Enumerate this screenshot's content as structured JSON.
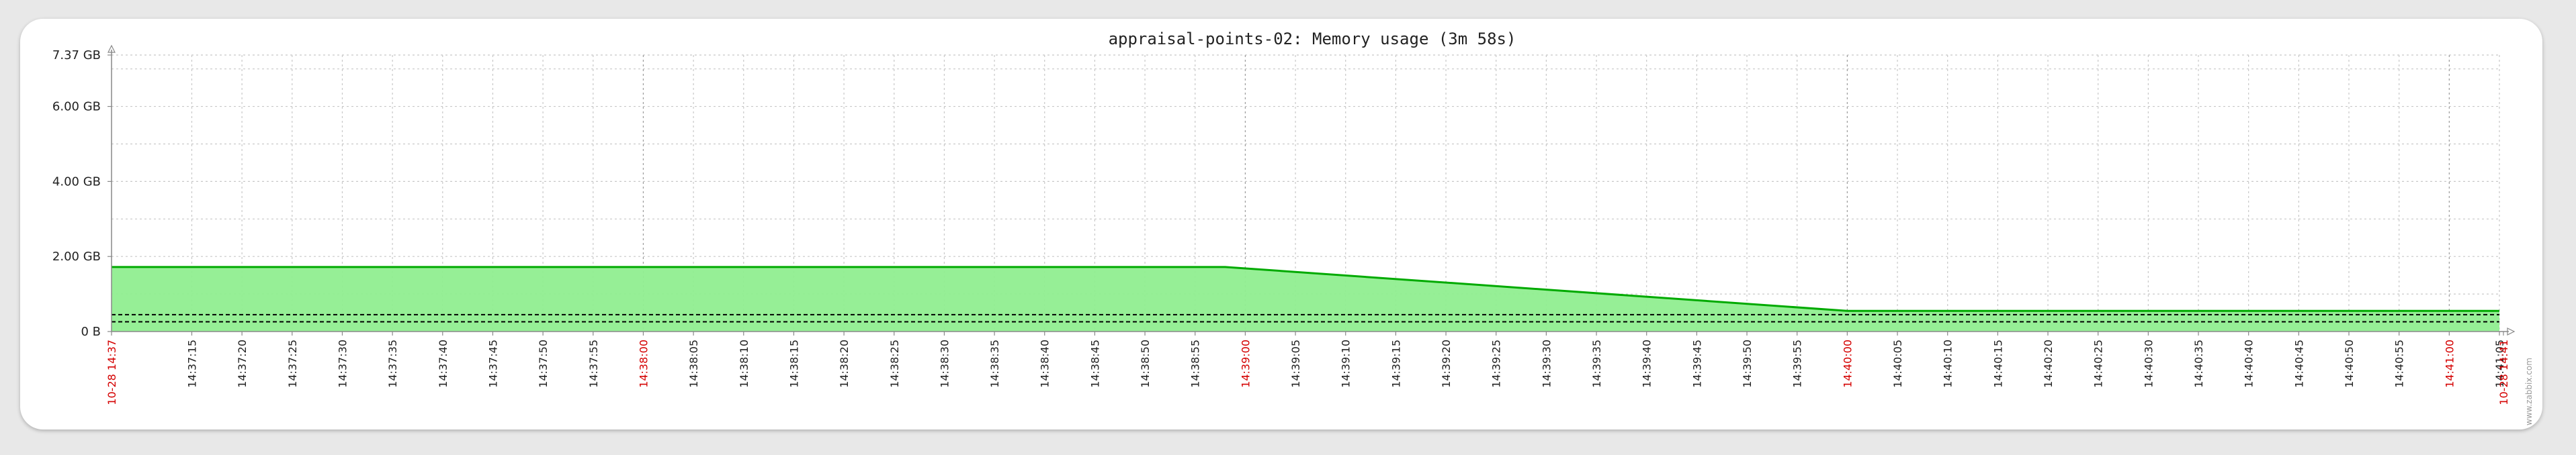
{
  "window": {
    "title": "appraisal-points-02: Memory usage (3m 58s)"
  },
  "watermark": "www.zabbix.com",
  "chart_data": {
    "type": "area",
    "title": "appraisal-points-02: Memory usage (3m 58s)",
    "y_ticks": [
      "0 B",
      "2.00 GB",
      "4.00 GB",
      "6.00 GB",
      "7.37 GB"
    ],
    "ylim": [
      0,
      7.37
    ],
    "y_unit": "GB",
    "x_start": "14:37:07",
    "x_end": "14:41:05",
    "x_ticks": [
      {
        "label": "10-28 14:37",
        "t": "14:37:07",
        "major": true
      },
      {
        "label": "14:37:15",
        "t": "14:37:15",
        "major": false
      },
      {
        "label": "14:37:20",
        "t": "14:37:20",
        "major": false
      },
      {
        "label": "14:37:25",
        "t": "14:37:25",
        "major": false
      },
      {
        "label": "14:37:30",
        "t": "14:37:30",
        "major": false
      },
      {
        "label": "14:37:35",
        "t": "14:37:35",
        "major": false
      },
      {
        "label": "14:37:40",
        "t": "14:37:40",
        "major": false
      },
      {
        "label": "14:37:45",
        "t": "14:37:45",
        "major": false
      },
      {
        "label": "14:37:50",
        "t": "14:37:50",
        "major": false
      },
      {
        "label": "14:37:55",
        "t": "14:37:55",
        "major": false
      },
      {
        "label": "14:38:00",
        "t": "14:38:00",
        "major": true
      },
      {
        "label": "14:38:05",
        "t": "14:38:05",
        "major": false
      },
      {
        "label": "14:38:10",
        "t": "14:38:10",
        "major": false
      },
      {
        "label": "14:38:15",
        "t": "14:38:15",
        "major": false
      },
      {
        "label": "14:38:20",
        "t": "14:38:20",
        "major": false
      },
      {
        "label": "14:38:25",
        "t": "14:38:25",
        "major": false
      },
      {
        "label": "14:38:30",
        "t": "14:38:30",
        "major": false
      },
      {
        "label": "14:38:35",
        "t": "14:38:35",
        "major": false
      },
      {
        "label": "14:38:40",
        "t": "14:38:40",
        "major": false
      },
      {
        "label": "14:38:45",
        "t": "14:38:45",
        "major": false
      },
      {
        "label": "14:38:50",
        "t": "14:38:50",
        "major": false
      },
      {
        "label": "14:38:55",
        "t": "14:38:55",
        "major": false
      },
      {
        "label": "14:39:00",
        "t": "14:39:00",
        "major": true
      },
      {
        "label": "14:39:05",
        "t": "14:39:05",
        "major": false
      },
      {
        "label": "14:39:10",
        "t": "14:39:10",
        "major": false
      },
      {
        "label": "14:39:15",
        "t": "14:39:15",
        "major": false
      },
      {
        "label": "14:39:20",
        "t": "14:39:20",
        "major": false
      },
      {
        "label": "14:39:25",
        "t": "14:39:25",
        "major": false
      },
      {
        "label": "14:39:30",
        "t": "14:39:30",
        "major": false
      },
      {
        "label": "14:39:35",
        "t": "14:39:35",
        "major": false
      },
      {
        "label": "14:39:40",
        "t": "14:39:40",
        "major": false
      },
      {
        "label": "14:39:45",
        "t": "14:39:45",
        "major": false
      },
      {
        "label": "14:39:50",
        "t": "14:39:50",
        "major": false
      },
      {
        "label": "14:39:55",
        "t": "14:39:55",
        "major": false
      },
      {
        "label": "14:40:00",
        "t": "14:40:00",
        "major": true
      },
      {
        "label": "14:40:05",
        "t": "14:40:05",
        "major": false
      },
      {
        "label": "14:40:10",
        "t": "14:40:10",
        "major": false
      },
      {
        "label": "14:40:15",
        "t": "14:40:15",
        "major": false
      },
      {
        "label": "14:40:20",
        "t": "14:40:20",
        "major": false
      },
      {
        "label": "14:40:25",
        "t": "14:40:25",
        "major": false
      },
      {
        "label": "14:40:30",
        "t": "14:40:30",
        "major": false
      },
      {
        "label": "14:40:35",
        "t": "14:40:35",
        "major": false
      },
      {
        "label": "14:40:40",
        "t": "14:40:40",
        "major": false
      },
      {
        "label": "14:40:45",
        "t": "14:40:45",
        "major": false
      },
      {
        "label": "14:40:50",
        "t": "14:40:50",
        "major": false
      },
      {
        "label": "14:40:55",
        "t": "14:40:55",
        "major": false
      },
      {
        "label": "14:41:00",
        "t": "14:41:00",
        "major": true
      },
      {
        "label": "14:41:05",
        "t": "14:41:05",
        "major": false
      },
      {
        "label": "10-28 14:41",
        "t": "14:41:05",
        "major": true
      }
    ],
    "series": [
      {
        "color": "#00aa00",
        "fill": "#90ee90",
        "x": [
          "14:37:07",
          "14:38:58",
          "14:40:00",
          "14:41:05"
        ],
        "values": [
          1.72,
          1.72,
          0.55,
          0.55
        ]
      }
    ],
    "reference_lines": [
      {
        "style": "dashed",
        "color": "#000000",
        "value": 0.45
      },
      {
        "style": "dashed",
        "color": "#000000",
        "value": 0.26
      }
    ],
    "grid": true,
    "colors": {
      "major_tick_label": "#d40000",
      "grid": "#c8c8c8"
    }
  }
}
